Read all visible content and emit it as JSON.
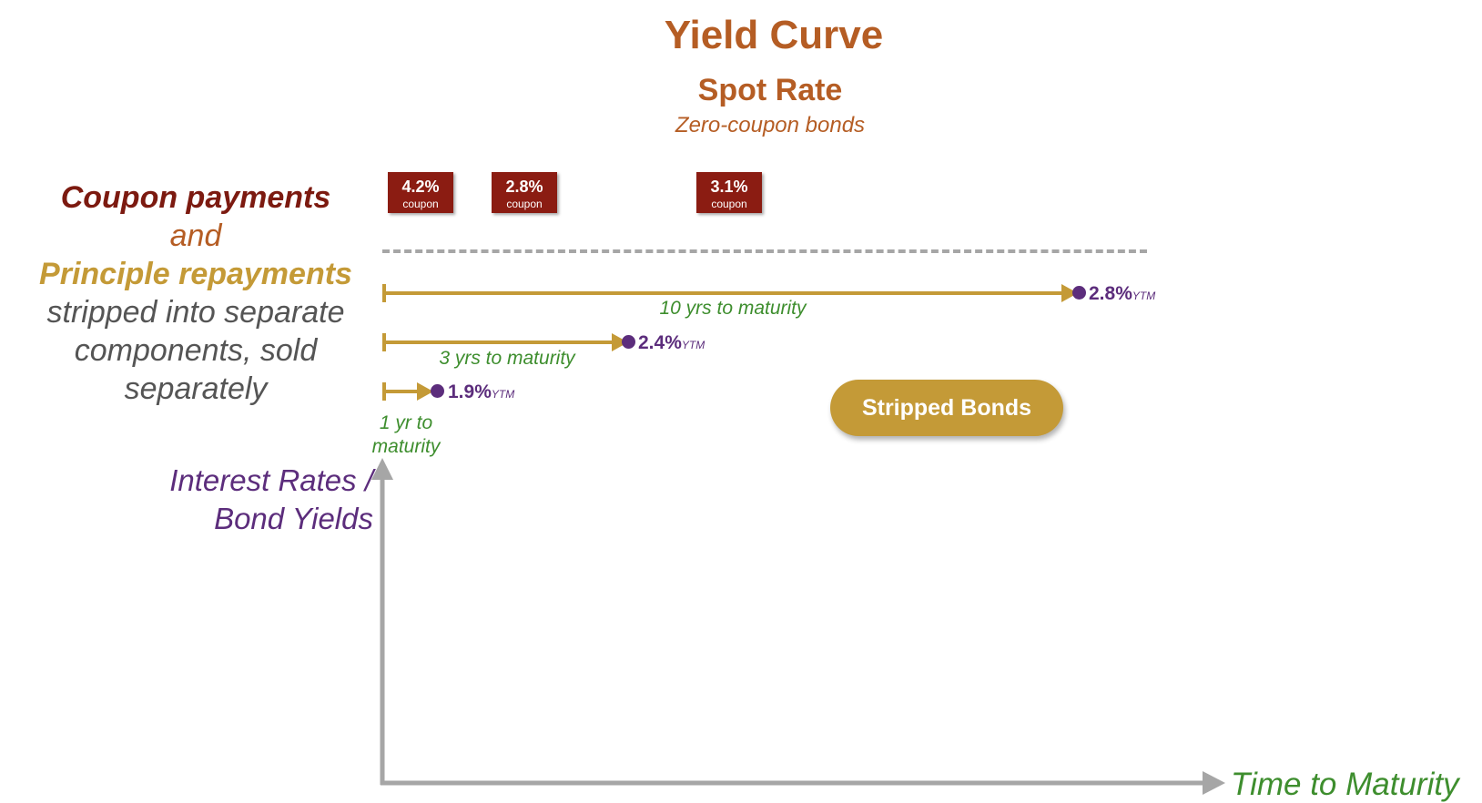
{
  "title": "Yield Curve",
  "subtitle": "Spot Rate",
  "subnote": "Zero-coupon bonds",
  "left_description": {
    "line1": "Coupon payments",
    "line2": "and",
    "line3": "Principle repayments",
    "line4": "stripped into separate components, sold separately"
  },
  "coupons": [
    {
      "pct": "4.2%",
      "label": "coupon"
    },
    {
      "pct": "2.8%",
      "label": "coupon"
    },
    {
      "pct": "3.1%",
      "label": "coupon"
    }
  ],
  "bonds": [
    {
      "maturity_label": "10 yrs to maturity",
      "ytm": "2.8%",
      "ytm_suffix": "YTM"
    },
    {
      "maturity_label": "3 yrs to maturity",
      "ytm": "2.4%",
      "ytm_suffix": "YTM"
    },
    {
      "maturity_label": "1 yr to maturity",
      "ytm": "1.9%",
      "ytm_suffix": "YTM"
    }
  ],
  "stripped_bonds_label": "Stripped Bonds",
  "y_axis_label": "Interest Rates / Bond Yields",
  "x_axis_label": "Time to Maturity",
  "colors": {
    "title": "#b55d24",
    "coupon_badge": "#8b1c12",
    "bond_line": "#c49a37",
    "ytm": "#5c2d7c",
    "maturity_text": "#3e8e2e",
    "axis": "#a6a6a6"
  }
}
